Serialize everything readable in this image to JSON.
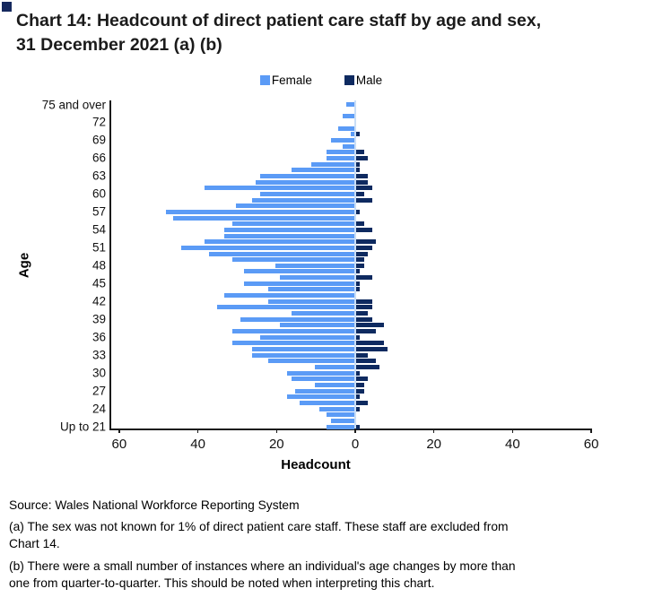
{
  "corner_marker_color": "#16295E",
  "title": {
    "line1": "Chart 14: Headcount of direct patient care staff by age and sex,",
    "line2": "31 December 2021 (a) (b)"
  },
  "legend": [
    {
      "label": "Female",
      "color": "#5B9BF6"
    },
    {
      "label": "Male",
      "color": "#0E2A60"
    }
  ],
  "chart_data": {
    "type": "bar",
    "subtype": "horizontal-population-pyramid",
    "title": "Chart 14: Headcount of direct patient care staff by age and sex, 31 December 2021 (a) (b)",
    "xlabel": "Headcount",
    "ylabel": "Age",
    "xlim": [
      -60,
      60
    ],
    "xtick_values": [
      -60,
      -40,
      -20,
      0,
      20,
      40,
      60
    ],
    "xtick_labels": [
      "60",
      "40",
      "20",
      "0",
      "20",
      "40",
      "60"
    ],
    "grid": false,
    "legend_position": "top-center",
    "zero_line_color": "#C9DEF7",
    "categories": [
      "75 and over",
      "74",
      "73",
      "72",
      "71",
      "70",
      "69",
      "68",
      "67",
      "66",
      "65",
      "64",
      "63",
      "62",
      "61",
      "60",
      "59",
      "58",
      "57",
      "56",
      "55",
      "54",
      "53",
      "52",
      "51",
      "50",
      "49",
      "48",
      "47",
      "46",
      "45",
      "44",
      "43",
      "42",
      "41",
      "40",
      "39",
      "38",
      "37",
      "36",
      "35",
      "34",
      "33",
      "32",
      "31",
      "30",
      "29",
      "28",
      "27",
      "26",
      "25",
      "24",
      "23",
      "22",
      "Up to 21"
    ],
    "ytick_labels": [
      "75 and over",
      "72",
      "69",
      "66",
      "63",
      "60",
      "57",
      "54",
      "51",
      "48",
      "45",
      "42",
      "39",
      "36",
      "33",
      "30",
      "27",
      "24",
      "Up to 21"
    ],
    "series": [
      {
        "name": "Female",
        "side": "left",
        "color": "#5B9BF6",
        "values": [
          2,
          0,
          3,
          0,
          4,
          1,
          6,
          3,
          7,
          7,
          11,
          16,
          24,
          25,
          38,
          24,
          26,
          30,
          48,
          46,
          31,
          33,
          33,
          38,
          44,
          37,
          31,
          20,
          28,
          19,
          28,
          22,
          33,
          22,
          35,
          16,
          29,
          19,
          31,
          24,
          31,
          26,
          26,
          22,
          10,
          17,
          16,
          10,
          15,
          17,
          14,
          9,
          7,
          6,
          7
        ]
      },
      {
        "name": "Male",
        "side": "right",
        "color": "#0E2A60",
        "values": [
          0,
          0,
          0,
          0,
          0,
          1,
          0,
          0,
          2,
          3,
          1,
          1,
          3,
          3,
          4,
          2,
          4,
          0,
          1,
          0,
          2,
          4,
          0,
          5,
          4,
          3,
          2,
          2,
          1,
          4,
          1,
          1,
          0,
          4,
          4,
          3,
          4,
          7,
          5,
          1,
          7,
          8,
          3,
          5,
          6,
          1,
          3,
          2,
          2,
          1,
          3,
          1,
          0,
          0,
          1
        ]
      }
    ]
  },
  "axis_titles": {
    "x": "Headcount",
    "y": "Age"
  },
  "footer": {
    "source": "Source: Wales National Workforce Reporting System",
    "footnote_a_line1": "(a) The sex was not known for 1% of direct patient care staff. These staff are excluded from",
    "footnote_a_line2": "Chart 14.",
    "footnote_b_line1": "(b) There were a small number of instances where an individual's age changes by more than",
    "footnote_b_line2": "one from quarter-to-quarter. This should be noted when interpreting this chart."
  }
}
